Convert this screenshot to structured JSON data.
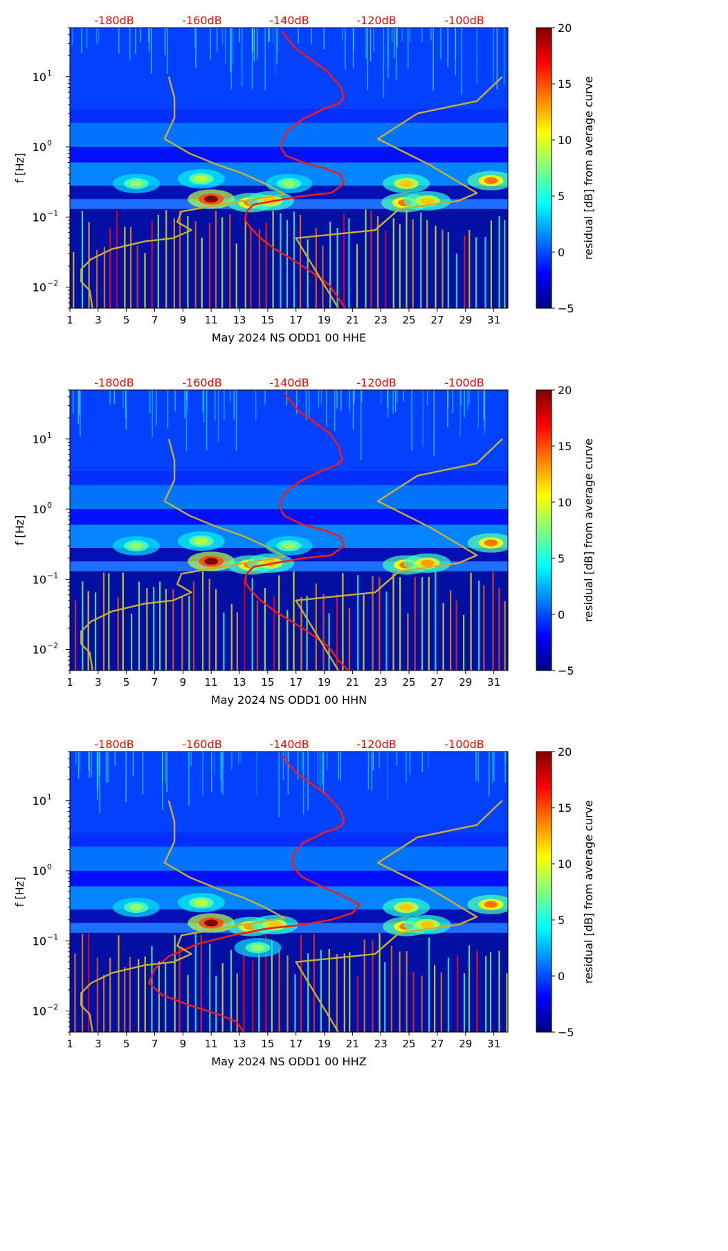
{
  "figure": {
    "month_label": "May 2024"
  },
  "colorbar": {
    "label": "residual [dB] from average curve",
    "range": [
      -5,
      20
    ],
    "ticks": [
      -5,
      0,
      5,
      10,
      15,
      20
    ],
    "tick_labels": [
      "−5",
      "0",
      "5",
      "10",
      "15",
      "20"
    ],
    "colormap": [
      "#00007f",
      "#0000ff",
      "#007fff",
      "#00ffff",
      "#7fff7f",
      "#ffff00",
      "#ff7f00",
      "#ff0000",
      "#7f0000"
    ]
  },
  "colors": {
    "psd_curve": "#ee1c1c",
    "noise_model": "#c8b030",
    "top_axis_text": "#ee0000",
    "background_low": "#00007f",
    "background_mid": "#1f6fff"
  },
  "chart_data": [
    {
      "type": "heatmap",
      "title": "",
      "xlabel": "May 2024 NS ODD1 00 HHE",
      "ylabel": "f [Hz]",
      "xlim": [
        1,
        32
      ],
      "ylim": [
        0.005,
        50
      ],
      "yscale": "log",
      "x_ticks": [
        1,
        3,
        5,
        7,
        9,
        11,
        13,
        15,
        17,
        19,
        21,
        23,
        25,
        27,
        29,
        31
      ],
      "y_ticks": [
        0.01,
        0.1,
        1,
        10
      ],
      "y_tick_labels": [
        {
          "base": "10",
          "exp": "−2"
        },
        {
          "base": "10",
          "exp": "−1"
        },
        {
          "base": "10",
          "exp": "0"
        },
        {
          "base": "10",
          "exp": "1"
        }
      ],
      "top_axis": {
        "labels": [
          "-180dB",
          "-160dB",
          "-140dB",
          "-120dB",
          "-100dB"
        ],
        "values": [
          -180,
          -160,
          -140,
          -120,
          -100
        ]
      },
      "series": [
        {
          "name": "average PSD curve",
          "style": "red",
          "x": [
            16.0,
            16.4,
            17.0,
            18.0,
            19.2,
            20.2,
            20.4,
            20.1,
            19.0,
            17.5,
            16.3,
            15.9,
            16.3,
            17.5,
            19.0,
            20.2,
            20.4,
            19.5,
            17.5,
            15.5,
            14.0,
            13.5,
            13.4,
            13.8,
            14.5,
            15.5,
            16.7,
            18.0,
            19.3,
            20.0,
            20.5
          ],
          "y": [
            45,
            35,
            25,
            18,
            12,
            7,
            5,
            4.2,
            3.5,
            2.5,
            1.6,
            1.0,
            0.75,
            0.6,
            0.5,
            0.4,
            0.3,
            0.22,
            0.2,
            0.17,
            0.15,
            0.12,
            0.09,
            0.07,
            0.05,
            0.035,
            0.025,
            0.017,
            0.011,
            0.007,
            0.005
          ]
        },
        {
          "name": "NLNM",
          "style": "gold",
          "x": [
            8.0,
            8.4,
            8.4,
            7.7,
            9.5,
            11.5,
            13.2,
            14.8,
            16.2,
            12.5,
            8.9,
            8.6,
            9.6,
            8.3,
            6.3,
            4.0,
            2.5,
            1.8,
            1.8,
            2.4,
            2.6
          ],
          "y": [
            10,
            5,
            2.6,
            1.3,
            0.8,
            0.55,
            0.42,
            0.3,
            0.21,
            0.16,
            0.12,
            0.085,
            0.065,
            0.05,
            0.045,
            0.035,
            0.025,
            0.018,
            0.012,
            0.009,
            0.005
          ]
        },
        {
          "name": "NHNM",
          "style": "gold",
          "x": [
            31.6,
            29.8,
            25.6,
            22.8,
            26.5,
            29.8,
            28.5,
            24.3,
            22.6,
            17.0,
            20.0
          ],
          "y": [
            10,
            4.5,
            3.0,
            1.3,
            0.55,
            0.22,
            0.17,
            0.13,
            0.065,
            0.05,
            0.005
          ]
        }
      ],
      "hotspots": [
        {
          "day": 11.0,
          "freq": 0.18,
          "level": 20
        },
        {
          "day": 13.8,
          "freq": 0.16,
          "level": 14
        },
        {
          "day": 15.2,
          "freq": 0.17,
          "level": 12
        },
        {
          "day": 24.8,
          "freq": 0.3,
          "level": 12
        },
        {
          "day": 24.7,
          "freq": 0.16,
          "level": 14
        },
        {
          "day": 26.3,
          "freq": 0.17,
          "level": 12
        },
        {
          "day": 30.8,
          "freq": 0.33,
          "level": 14
        },
        {
          "day": 5.7,
          "freq": 0.3,
          "level": 8
        },
        {
          "day": 10.3,
          "freq": 0.35,
          "level": 9
        },
        {
          "day": 16.5,
          "freq": 0.3,
          "level": 8
        }
      ]
    },
    {
      "type": "heatmap",
      "title": "",
      "xlabel": "May 2024 NS ODD1 00 HHN",
      "ylabel": "f [Hz]",
      "xlim": [
        1,
        32
      ],
      "ylim": [
        0.005,
        50
      ],
      "yscale": "log",
      "x_ticks": [
        1,
        3,
        5,
        7,
        9,
        11,
        13,
        15,
        17,
        19,
        21,
        23,
        25,
        27,
        29,
        31
      ],
      "y_ticks": [
        0.01,
        0.1,
        1,
        10
      ],
      "y_tick_labels": [
        {
          "base": "10",
          "exp": "−2"
        },
        {
          "base": "10",
          "exp": "−1"
        },
        {
          "base": "10",
          "exp": "0"
        },
        {
          "base": "10",
          "exp": "1"
        }
      ],
      "top_axis": {
        "labels": [
          "-180dB",
          "-160dB",
          "-140dB",
          "-120dB",
          "-100dB"
        ],
        "values": [
          -180,
          -160,
          -140,
          -120,
          -100
        ]
      },
      "series": [
        {
          "name": "average PSD curve",
          "style": "red",
          "x": [
            16.2,
            16.6,
            17.2,
            18.2,
            19.4,
            20.0,
            20.3,
            19.8,
            18.8,
            17.3,
            16.2,
            15.8,
            16.2,
            17.5,
            19.0,
            20.2,
            20.4,
            19.5,
            17.5,
            15.5,
            14.0,
            13.5,
            13.4,
            13.8,
            14.5,
            15.5,
            16.7,
            18.0,
            19.3,
            20.0,
            20.7
          ],
          "y": [
            45,
            35,
            25,
            18,
            12,
            8,
            5,
            4.2,
            3.5,
            2.5,
            1.7,
            1.1,
            0.8,
            0.6,
            0.5,
            0.4,
            0.3,
            0.22,
            0.2,
            0.17,
            0.15,
            0.12,
            0.09,
            0.07,
            0.05,
            0.035,
            0.025,
            0.017,
            0.011,
            0.007,
            0.005
          ]
        },
        {
          "name": "NLNM",
          "style": "gold",
          "x": [
            8.0,
            8.4,
            8.4,
            7.7,
            9.5,
            11.5,
            13.2,
            14.8,
            16.2,
            12.5,
            8.9,
            8.6,
            9.6,
            8.3,
            6.3,
            4.0,
            2.5,
            1.8,
            1.8,
            2.4,
            2.6
          ],
          "y": [
            10,
            5,
            2.6,
            1.3,
            0.8,
            0.55,
            0.42,
            0.3,
            0.21,
            0.16,
            0.12,
            0.085,
            0.065,
            0.05,
            0.045,
            0.035,
            0.025,
            0.018,
            0.012,
            0.009,
            0.005
          ]
        },
        {
          "name": "NHNM",
          "style": "gold",
          "x": [
            31.6,
            29.8,
            25.6,
            22.8,
            26.5,
            29.8,
            28.5,
            24.3,
            22.6,
            17.0,
            20.0
          ],
          "y": [
            10,
            4.5,
            3.0,
            1.3,
            0.55,
            0.22,
            0.17,
            0.13,
            0.065,
            0.05,
            0.005
          ]
        }
      ],
      "hotspots": [
        {
          "day": 11.0,
          "freq": 0.18,
          "level": 20
        },
        {
          "day": 13.8,
          "freq": 0.16,
          "level": 14
        },
        {
          "day": 15.2,
          "freq": 0.17,
          "level": 12
        },
        {
          "day": 24.8,
          "freq": 0.16,
          "level": 14
        },
        {
          "day": 26.3,
          "freq": 0.17,
          "level": 13
        },
        {
          "day": 30.8,
          "freq": 0.33,
          "level": 14
        },
        {
          "day": 5.7,
          "freq": 0.3,
          "level": 8
        },
        {
          "day": 10.3,
          "freq": 0.35,
          "level": 9
        },
        {
          "day": 16.5,
          "freq": 0.3,
          "level": 8
        }
      ]
    },
    {
      "type": "heatmap",
      "title": "",
      "xlabel": "May 2024 NS ODD1 00 HHZ",
      "ylabel": "f [Hz]",
      "xlim": [
        1,
        32
      ],
      "ylim": [
        0.005,
        50
      ],
      "yscale": "log",
      "x_ticks": [
        1,
        3,
        5,
        7,
        9,
        11,
        13,
        15,
        17,
        19,
        21,
        23,
        25,
        27,
        29,
        31
      ],
      "y_ticks": [
        0.01,
        0.1,
        1,
        10
      ],
      "y_tick_labels": [
        {
          "base": "10",
          "exp": "−2"
        },
        {
          "base": "10",
          "exp": "−1"
        },
        {
          "base": "10",
          "exp": "0"
        },
        {
          "base": "10",
          "exp": "1"
        }
      ],
      "top_axis": {
        "labels": [
          "-180dB",
          "-160dB",
          "-140dB",
          "-120dB",
          "-100dB"
        ],
        "values": [
          -180,
          -160,
          -140,
          -120,
          -100
        ]
      },
      "series": [
        {
          "name": "average PSD curve",
          "style": "red",
          "x": [
            16.0,
            16.4,
            17.0,
            18.0,
            19.2,
            20.2,
            20.4,
            20.1,
            19.0,
            17.5,
            16.8,
            16.8,
            17.5,
            18.8,
            20.2,
            21.5,
            21.0,
            19.5,
            17.5,
            15.0,
            12.5,
            10.0,
            8.0,
            7.0,
            6.6,
            7.5,
            9.5,
            11.5,
            12.8,
            13.3
          ],
          "y": [
            45,
            35,
            25,
            18,
            12,
            7,
            5,
            4.2,
            3.5,
            2.5,
            1.7,
            1.1,
            0.8,
            0.6,
            0.45,
            0.33,
            0.25,
            0.2,
            0.17,
            0.15,
            0.12,
            0.09,
            0.06,
            0.04,
            0.025,
            0.017,
            0.012,
            0.009,
            0.007,
            0.005
          ]
        },
        {
          "name": "NLNM",
          "style": "gold",
          "x": [
            8.0,
            8.4,
            8.4,
            7.7,
            9.5,
            11.5,
            13.2,
            14.8,
            16.2,
            12.5,
            8.9,
            8.6,
            9.6,
            8.3,
            6.3,
            4.0,
            2.5,
            1.8,
            1.8,
            2.4,
            2.6
          ],
          "y": [
            10,
            5,
            2.6,
            1.3,
            0.8,
            0.55,
            0.42,
            0.3,
            0.21,
            0.16,
            0.12,
            0.085,
            0.065,
            0.05,
            0.045,
            0.035,
            0.025,
            0.018,
            0.012,
            0.009,
            0.005
          ]
        },
        {
          "name": "NHNM",
          "style": "gold",
          "x": [
            31.6,
            29.8,
            25.6,
            22.8,
            26.5,
            29.8,
            28.5,
            24.3,
            22.6,
            17.0,
            20.0
          ],
          "y": [
            10,
            4.5,
            3.0,
            1.3,
            0.55,
            0.22,
            0.17,
            0.13,
            0.065,
            0.05,
            0.005
          ]
        }
      ],
      "hotspots": [
        {
          "day": 11.0,
          "freq": 0.18,
          "level": 20
        },
        {
          "day": 13.8,
          "freq": 0.16,
          "level": 13
        },
        {
          "day": 15.5,
          "freq": 0.17,
          "level": 12
        },
        {
          "day": 24.8,
          "freq": 0.3,
          "level": 12
        },
        {
          "day": 24.8,
          "freq": 0.16,
          "level": 14
        },
        {
          "day": 26.3,
          "freq": 0.17,
          "level": 12
        },
        {
          "day": 30.8,
          "freq": 0.33,
          "level": 14
        },
        {
          "day": 5.7,
          "freq": 0.3,
          "level": 8
        },
        {
          "day": 10.3,
          "freq": 0.35,
          "level": 9
        },
        {
          "day": 14.3,
          "freq": 0.08,
          "level": 8
        }
      ]
    }
  ]
}
